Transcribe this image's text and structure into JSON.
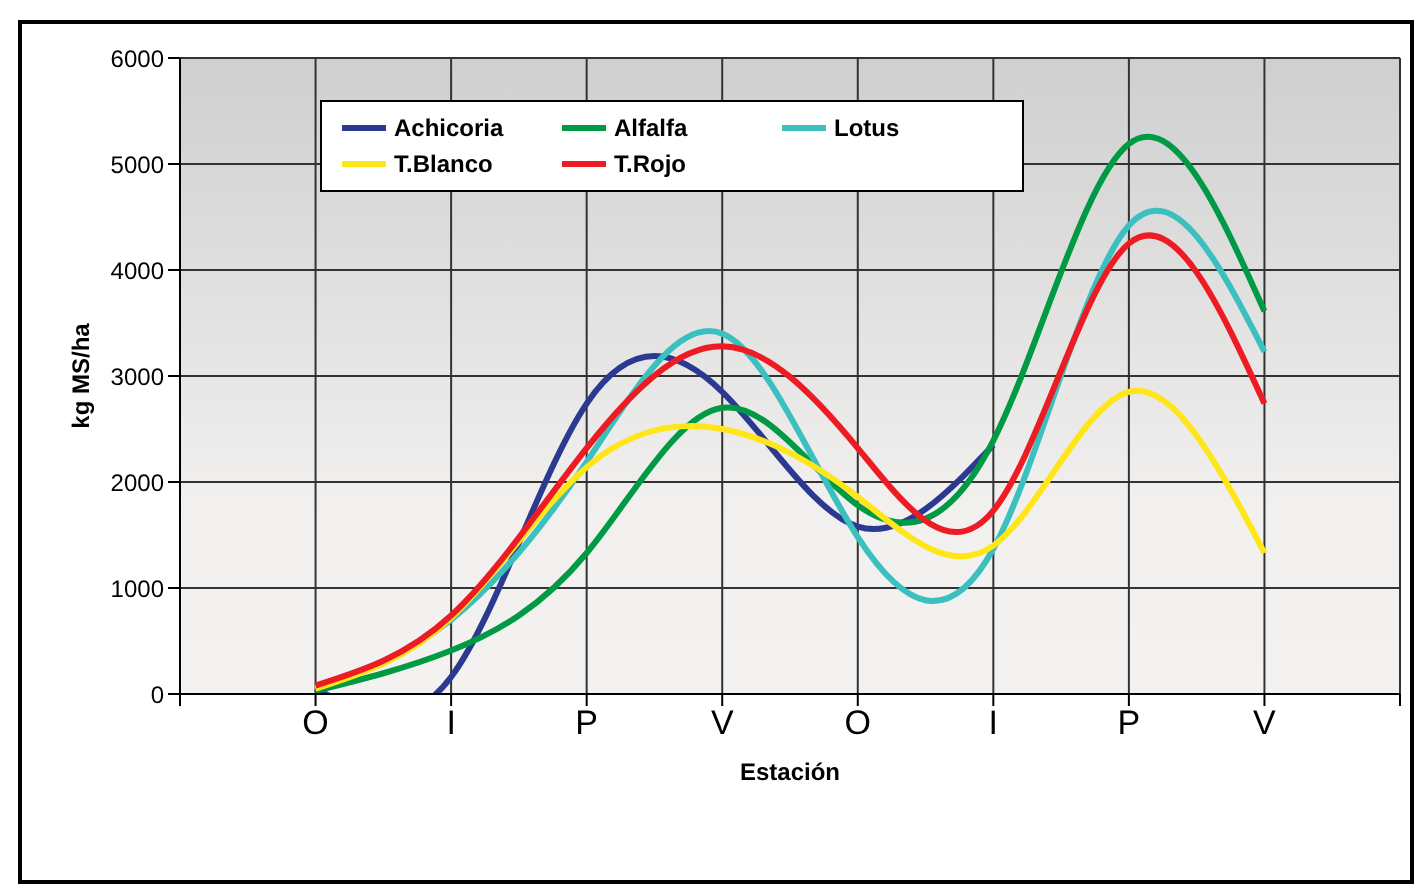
{
  "chart_data": {
    "type": "line",
    "xlabel": "Estación",
    "ylabel": "kg MS/ha",
    "categories": [
      null,
      "O",
      "I",
      "P",
      "V",
      "O",
      "I",
      "P",
      "V",
      null
    ],
    "series": [
      {
        "name": "Achicoria",
        "color": "#2b3990",
        "values": [
          null,
          50,
          160,
          2740,
          2850,
          1580,
          2350,
          null,
          null,
          null
        ]
      },
      {
        "name": "Alfalfa",
        "color": "#009a44",
        "values": [
          null,
          30,
          410,
          1330,
          2700,
          1780,
          2390,
          5190,
          3610,
          null
        ]
      },
      {
        "name": "Lotus",
        "color": "#3cbfbf",
        "values": [
          null,
          60,
          700,
          2190,
          3400,
          1480,
          1370,
          4420,
          3230,
          null
        ]
      },
      {
        "name": "T.Blanco",
        "color": "#ffe619",
        "values": [
          null,
          50,
          720,
          2140,
          2500,
          1860,
          1400,
          2850,
          1330,
          null
        ]
      },
      {
        "name": "T.Rojo",
        "color": "#ed1c24",
        "values": [
          null,
          80,
          740,
          2320,
          3280,
          2320,
          1730,
          4250,
          2740,
          null
        ]
      }
    ],
    "ylim": [
      0,
      6000
    ],
    "yticks": [
      0,
      1000,
      2000,
      3000,
      4000,
      5000,
      6000
    ],
    "grid": true,
    "legend": "top left",
    "marker": "none",
    "line_style": "solid"
  }
}
